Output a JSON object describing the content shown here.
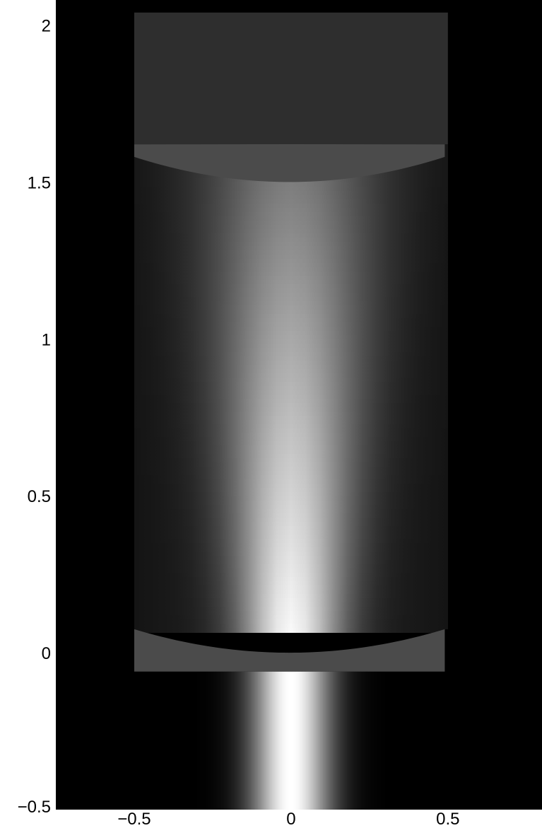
{
  "chart_data": {
    "type": "heatmap",
    "title": "",
    "xlabel": "",
    "ylabel": "",
    "xlim": [
      -0.75,
      0.8
    ],
    "ylim": [
      -0.5,
      2.08
    ],
    "x_ticks": [
      -0.5,
      0,
      0.5
    ],
    "x_tick_labels": [
      "−0.5",
      "0",
      "0.5"
    ],
    "y_ticks": [
      -0.5,
      0,
      0.5,
      1,
      1.5,
      2
    ],
    "y_tick_labels": [
      "−0.5",
      "0",
      "0.5",
      "1",
      "1.5",
      "2"
    ],
    "colormap": "grayscale",
    "background_color": "#000000",
    "grid": false,
    "beam": {
      "x_center": 0,
      "incident_gaussian_width": 0.09,
      "incident_y_range": [
        -0.5,
        -0.06
      ],
      "cavity_gaussian_width_at_bottom": 0.11,
      "cavity_gaussian_width_at_top": 0.19,
      "peak_intensity": 1.0
    },
    "cavity_region": {
      "x_range": [
        -0.5,
        0.5
      ],
      "y_range": [
        0.0,
        1.62
      ],
      "background_gray": "#262626"
    },
    "mirrors": [
      {
        "name": "bottom mirror",
        "x_range": [
          -0.5,
          0.49
        ],
        "y_flat_edge": -0.06,
        "surface_center_y": 0.0,
        "surface_edge_y": 0.075,
        "color": "#4b4b4b"
      },
      {
        "name": "top mirror",
        "x_range": [
          -0.5,
          0.49
        ],
        "y_flat_edge": 1.62,
        "surface_center_y": 1.5,
        "surface_edge_y": 1.58,
        "color": "#4b4b4b"
      }
    ],
    "top_region": {
      "x_range": [
        -0.5,
        0.5
      ],
      "y_range": [
        1.62,
        2.04
      ],
      "color": "#2e2e2e"
    }
  }
}
